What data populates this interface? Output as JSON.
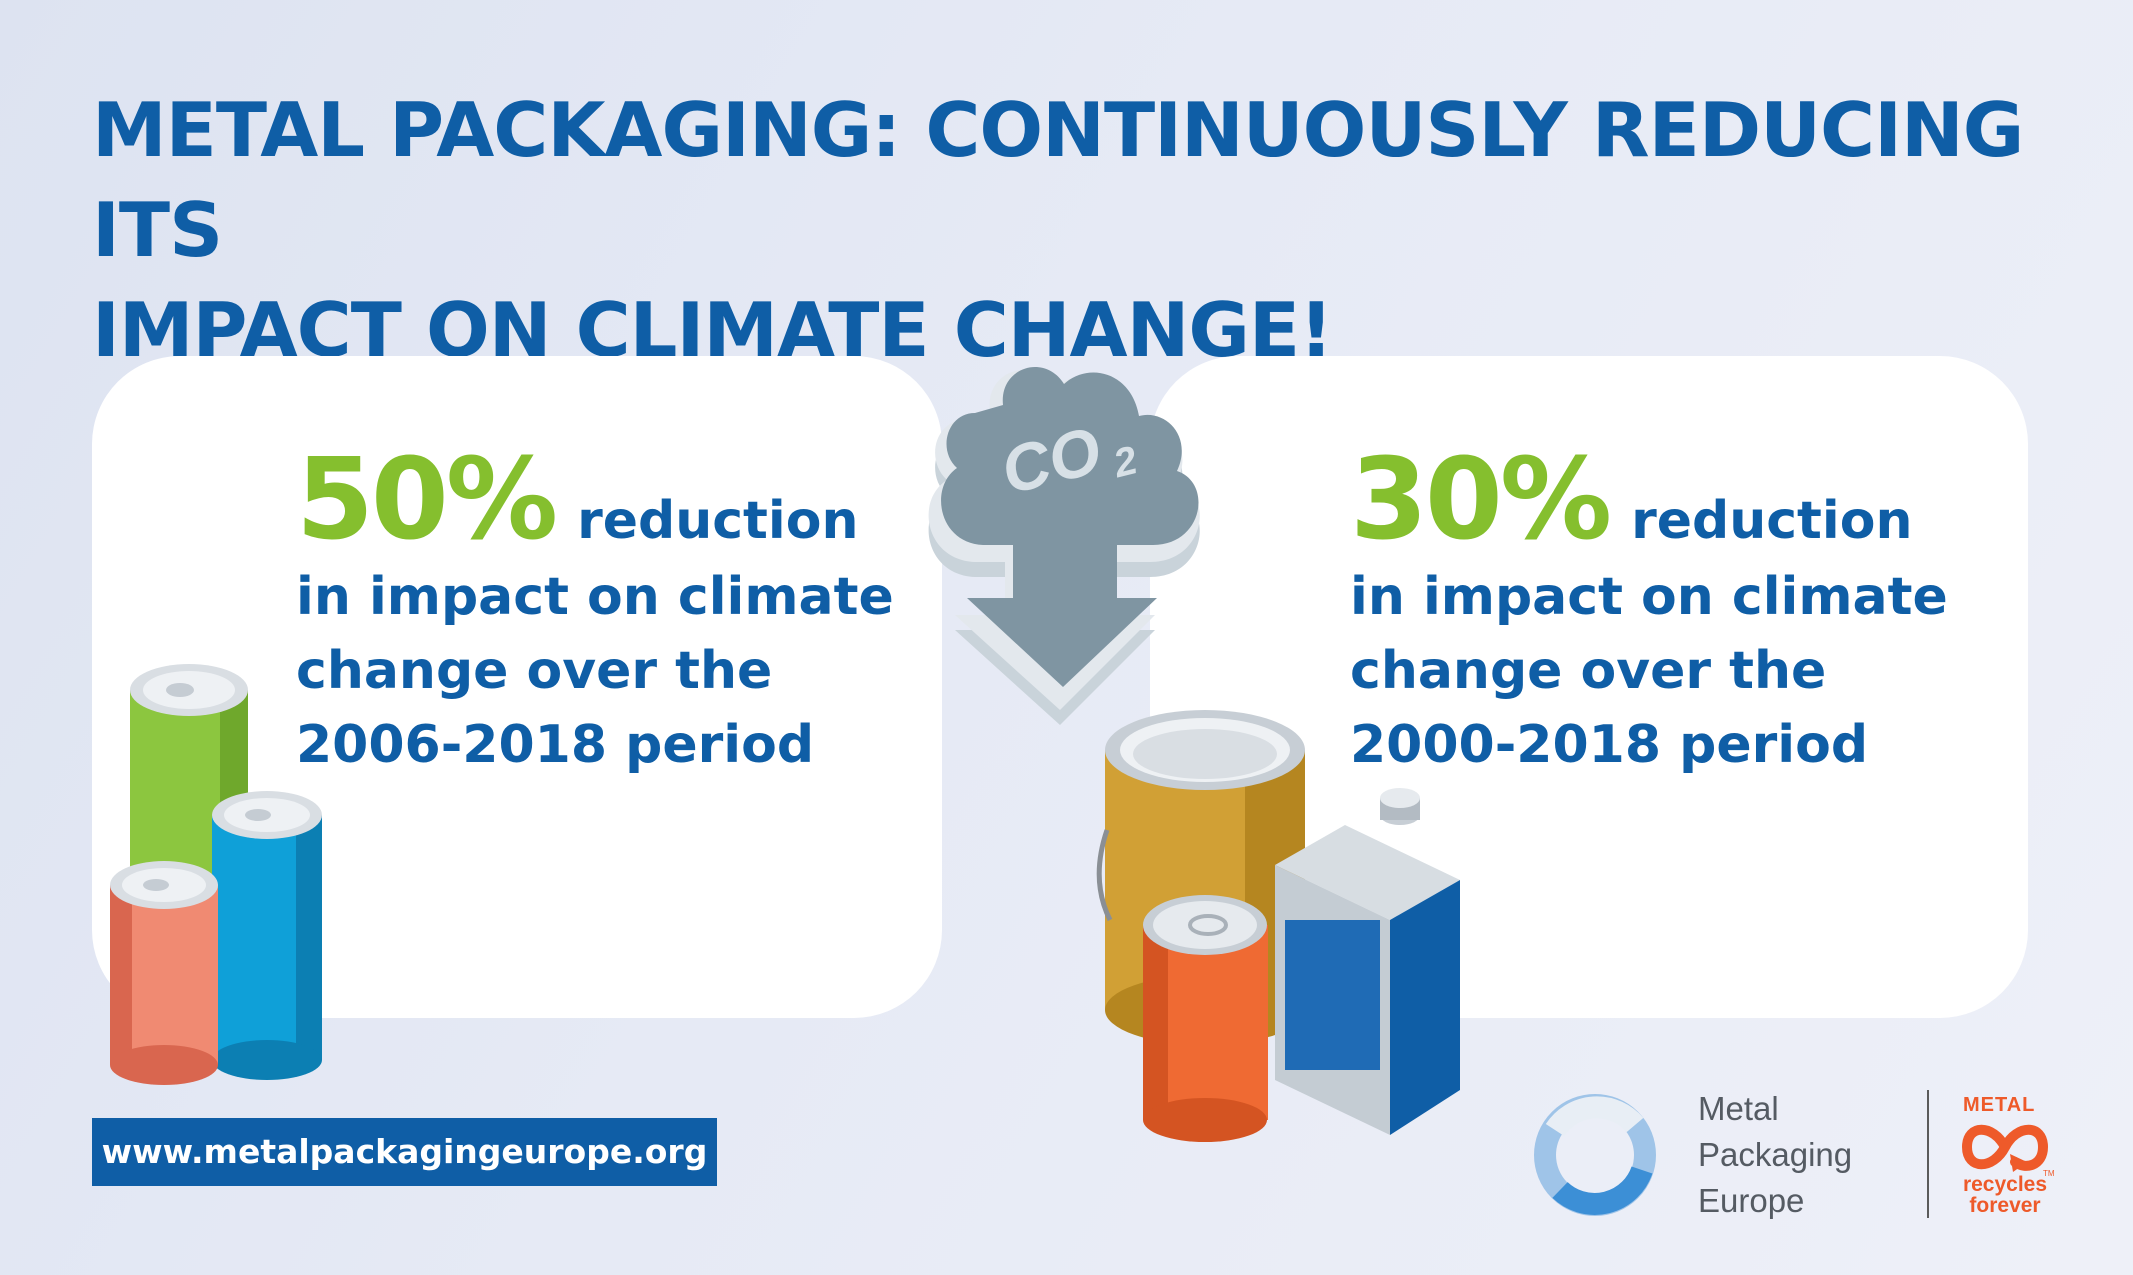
{
  "title": {
    "line1": "METAL PACKAGING: CONTINUOUSLY REDUCING ITS",
    "line2": "IMPACT ON CLIMATE CHANGE!"
  },
  "cloud": {
    "label": "CO",
    "subscript": "2"
  },
  "left_stat": {
    "percent": "50%",
    "word": "reduction",
    "line2": "in impact on climate",
    "line3": "change over the",
    "line4": "2006-2018 period"
  },
  "right_stat": {
    "percent": "30%",
    "word": "reduction",
    "line2": "in impact on climate",
    "line3": "change over the",
    "line4": "2000-2018 period"
  },
  "footer": {
    "url": "www.metalpackagingeurope.org",
    "org_line1": "Metal",
    "org_line2": "Packaging",
    "org_line3": "Europe",
    "brand_top": "METAL",
    "brand_line1": "recycles",
    "brand_line2": "forever",
    "brand_tm": "TM"
  },
  "colors": {
    "title_blue": "#0f5ea6",
    "percent_green": "#85bf2e",
    "cloud_grey": "#7f95a2",
    "brand_orange": "#ee5a2a"
  },
  "icons": [
    "co2-cloud-icon",
    "beverage-cans-icon",
    "food-and-paint-cans-icon",
    "metal-packaging-europe-ring-logo",
    "metal-recycles-forever-logo"
  ]
}
